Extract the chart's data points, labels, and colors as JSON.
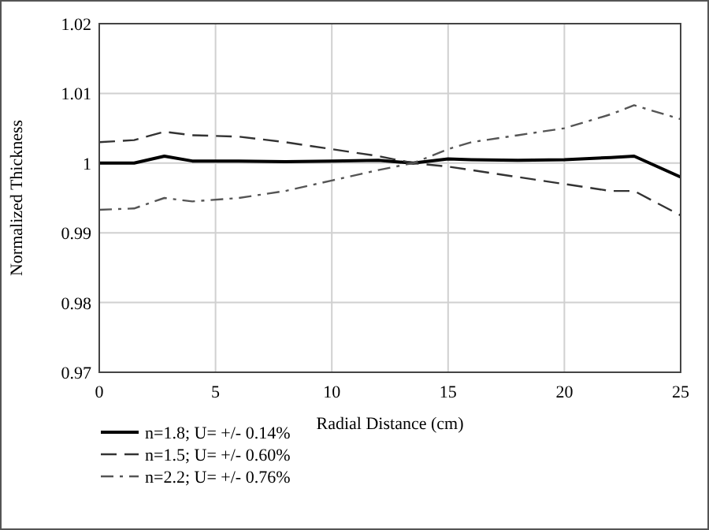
{
  "chart_data": {
    "type": "line",
    "xlabel": "Radial Distance (cm)",
    "ylabel": "Normalized Thickness",
    "xlim": [
      0,
      25
    ],
    "xticks": [
      0,
      5,
      10,
      15,
      20,
      25
    ],
    "ylim": [
      0.97,
      1.02
    ],
    "yticks": [
      0.97,
      0.98,
      0.99,
      1,
      1.01,
      1.02
    ],
    "grid": true,
    "legend": "bottom",
    "x": [
      0,
      1.5,
      2.8,
      4,
      6,
      8,
      10,
      12,
      13.5,
      15,
      16,
      18,
      20,
      22,
      23,
      25
    ],
    "series": [
      {
        "name": "n=1.8; U= +/- 0.14%",
        "color": "#000000",
        "line_style": "solid",
        "values": [
          1.0,
          1.0,
          1.001,
          1.0003,
          1.0003,
          1.0002,
          1.0003,
          1.0004,
          1.0,
          1.0006,
          1.0005,
          1.0004,
          1.0005,
          1.0008,
          1.001,
          0.998
        ]
      },
      {
        "name": "n=1.5; U= +/- 0.60%",
        "color": "#333333",
        "line_style": "dashed",
        "values": [
          1.003,
          1.0033,
          1.0045,
          1.004,
          1.0038,
          1.003,
          1.002,
          1.001,
          1.0,
          0.9995,
          0.999,
          0.998,
          0.997,
          0.996,
          0.996,
          0.9925
        ]
      },
      {
        "name": "n=2.2; U= +/- 0.76%",
        "color": "#555555",
        "line_style": "dashdot",
        "values": [
          0.9933,
          0.9935,
          0.995,
          0.9945,
          0.995,
          0.996,
          0.9975,
          0.999,
          1.0,
          1.002,
          1.003,
          1.004,
          1.005,
          1.007,
          1.0083,
          1.0063
        ]
      }
    ]
  }
}
